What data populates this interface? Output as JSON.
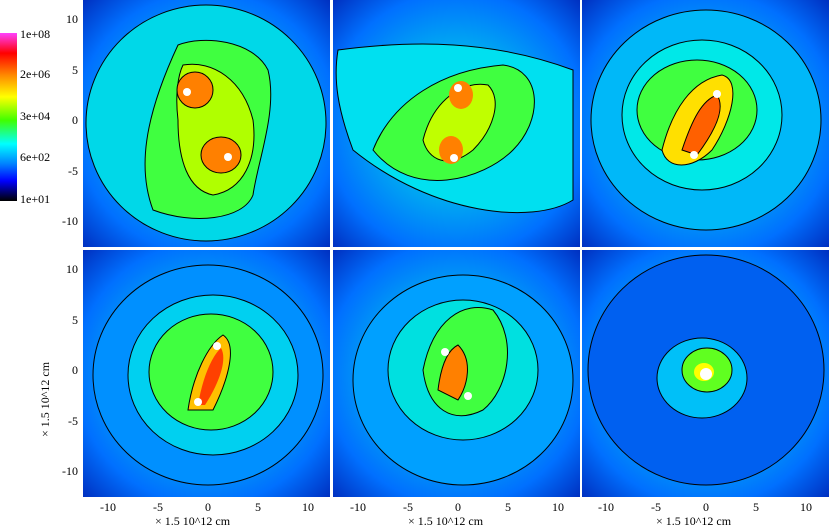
{
  "colorbar": {
    "labels": [
      "1e+08",
      "2e+06",
      "3e+04",
      "6e+02",
      "1e+01"
    ],
    "stops": [
      "#ff40ff",
      "#ff0000",
      "#ff8800",
      "#ffff00",
      "#40ff00",
      "#00ffff",
      "#0080ff",
      "#0000ff",
      "#000000"
    ]
  },
  "axes": {
    "y_ticks": [
      "10",
      "5",
      "0",
      "-5",
      "-10"
    ],
    "x_ticks": [
      "-10",
      "-5",
      "0",
      "5",
      "10"
    ],
    "x_label": "× 1.5 10^12 cm",
    "y_label": "× 1.5 10^12 cm"
  },
  "panels": [
    {
      "name": "panel-top-left"
    },
    {
      "name": "panel-top-middle"
    },
    {
      "name": "panel-top-right"
    },
    {
      "name": "panel-bottom-left"
    },
    {
      "name": "panel-bottom-middle"
    },
    {
      "name": "panel-bottom-right"
    }
  ]
}
